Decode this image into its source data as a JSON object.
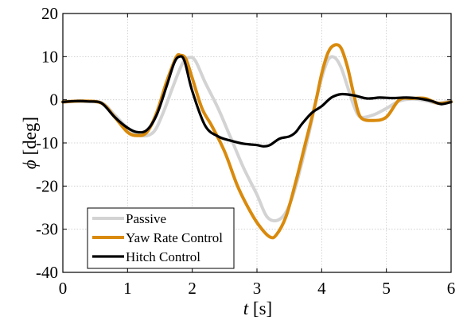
{
  "chart_data": {
    "type": "line",
    "xlabel": {
      "symbol": "t",
      "unit": " [s]"
    },
    "ylabel": {
      "symbol": "ϕ",
      "unit": " [deg]"
    },
    "xlim": [
      0,
      6
    ],
    "ylim": [
      -40,
      20
    ],
    "xticks": [
      "0",
      "1",
      "2",
      "3",
      "4",
      "5",
      "6"
    ],
    "yticks": [
      "20",
      "10",
      "0",
      "-10",
      "-20",
      "-30",
      "-40"
    ],
    "grid": true,
    "legend_position": "bottom-left",
    "series": [
      {
        "name": "Passive",
        "color": "#d3d3d3",
        "width": 4,
        "x": [
          0,
          0.3,
          0.6,
          0.8,
          1.0,
          1.2,
          1.4,
          1.55,
          1.7,
          1.85,
          1.95,
          2.05,
          2.2,
          2.4,
          2.6,
          2.8,
          3.0,
          3.15,
          3.3,
          3.45,
          3.6,
          3.8,
          3.9,
          4.0,
          4.1,
          4.2,
          4.3,
          4.4,
          4.5,
          4.6,
          4.8,
          5.0,
          5.2,
          5.4,
          5.6,
          5.8,
          6.0
        ],
        "y": [
          -0.5,
          -0.3,
          -0.7,
          -3.5,
          -6.5,
          -8.3,
          -7.5,
          -3,
          3,
          8.5,
          9.8,
          9,
          4,
          -2,
          -9,
          -16,
          -22,
          -27,
          -28,
          -26,
          -20,
          -8,
          -1,
          5,
          9.3,
          9.8,
          7.5,
          3,
          -1.5,
          -4,
          -3.5,
          -2,
          -0.3,
          0.2,
          -0.2,
          -0.8,
          -0.2
        ]
      },
      {
        "name": "Yaw Rate Control",
        "color": "#d98a0c",
        "width": 4,
        "x": [
          0,
          0.3,
          0.6,
          0.8,
          1.0,
          1.15,
          1.3,
          1.45,
          1.6,
          1.75,
          1.82,
          1.9,
          2.0,
          2.15,
          2.3,
          2.5,
          2.7,
          2.9,
          3.05,
          3.2,
          3.3,
          3.45,
          3.6,
          3.75,
          3.9,
          4.0,
          4.1,
          4.2,
          4.3,
          4.4,
          4.5,
          4.6,
          4.8,
          5.0,
          5.2,
          5.4,
          5.6,
          5.8,
          6.0
        ],
        "y": [
          -0.5,
          -0.3,
          -0.8,
          -4,
          -7.5,
          -8.3,
          -7.5,
          -3,
          4,
          9.8,
          10.3,
          9.5,
          5,
          -2,
          -6,
          -12,
          -20,
          -26,
          -29.5,
          -31.8,
          -31.3,
          -27,
          -19,
          -10,
          -1,
          6,
          11,
          12.7,
          12,
          7.5,
          1,
          -4,
          -4.8,
          -4,
          0,
          0.3,
          0.3,
          -0.8,
          -0.5
        ]
      },
      {
        "name": "Hitch Control",
        "color": "#000000",
        "width": 3.2,
        "x": [
          0,
          0.2,
          0.4,
          0.6,
          0.8,
          1.0,
          1.15,
          1.3,
          1.45,
          1.6,
          1.72,
          1.8,
          1.88,
          2.0,
          2.2,
          2.4,
          2.6,
          2.8,
          3.0,
          3.1,
          3.2,
          3.35,
          3.5,
          3.6,
          3.7,
          3.85,
          4.0,
          4.15,
          4.3,
          4.5,
          4.7,
          4.9,
          5.1,
          5.3,
          5.5,
          5.7,
          5.85,
          6.0
        ],
        "y": [
          -0.5,
          -0.3,
          -0.4,
          -0.8,
          -4,
          -6.5,
          -7.5,
          -7,
          -3.5,
          3,
          8.5,
          10,
          9,
          2,
          -6,
          -8.5,
          -9.5,
          -10.2,
          -10.5,
          -10.8,
          -10.5,
          -9,
          -8.5,
          -7.5,
          -5.5,
          -3,
          -1.5,
          0.5,
          1.3,
          1,
          0.3,
          0.5,
          0.4,
          0.5,
          0.3,
          -0.3,
          -1,
          -0.5
        ]
      }
    ]
  }
}
